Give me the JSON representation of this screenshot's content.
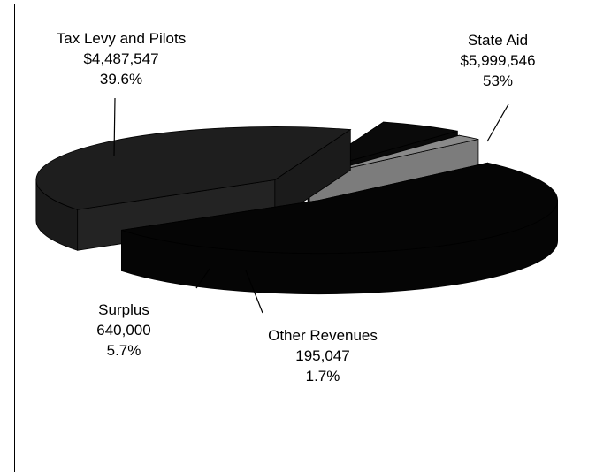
{
  "chart_data": {
    "type": "pie",
    "style": "3d-exploded",
    "slices": [
      {
        "label": "State Aid",
        "amount": "$5,999,546",
        "pct_label": "53%",
        "value": 5999546,
        "percent": 53,
        "color": "#050505"
      },
      {
        "label": "Tax Levy and Pilots",
        "amount": "$4,487,547",
        "pct_label": "39.6%",
        "value": 4487547,
        "percent": 39.6,
        "color": "#1e1e1e"
      },
      {
        "label": "Surplus",
        "amount": "640,000",
        "pct_label": "5.7%",
        "value": 640000,
        "percent": 5.7,
        "color": "#0a0a0a"
      },
      {
        "label": "Other Revenues",
        "amount": "195,047",
        "pct_label": "1.7%",
        "value": 195047,
        "percent": 1.7,
        "color": "#8a8a8a"
      }
    ]
  }
}
